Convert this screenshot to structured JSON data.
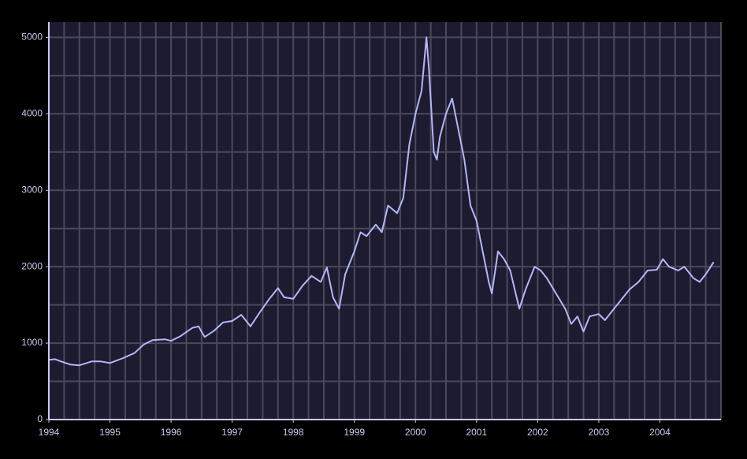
{
  "chart_data": {
    "type": "line",
    "x": [
      1994.0,
      1994.1,
      1994.2,
      1994.35,
      1994.5,
      1994.7,
      1994.85,
      1995.0,
      1995.2,
      1995.4,
      1995.55,
      1995.7,
      1995.9,
      1996.0,
      1996.15,
      1996.35,
      1996.45,
      1996.55,
      1996.7,
      1996.85,
      1997.0,
      1997.15,
      1997.3,
      1997.45,
      1997.6,
      1997.75,
      1997.85,
      1998.0,
      1998.15,
      1998.3,
      1998.45,
      1998.55,
      1998.65,
      1998.75,
      1998.85,
      1999.0,
      1999.1,
      1999.2,
      1999.35,
      1999.45,
      1999.55,
      1999.7,
      1999.8,
      1999.9,
      2000.0,
      2000.1,
      2000.18,
      2000.22,
      2000.3,
      2000.35,
      2000.4,
      2000.5,
      2000.6,
      2000.7,
      2000.8,
      2000.9,
      2001.0,
      2001.1,
      2001.2,
      2001.25,
      2001.35,
      2001.45,
      2001.55,
      2001.7,
      2001.8,
      2001.95,
      2002.05,
      2002.15,
      2002.3,
      2002.45,
      2002.55,
      2002.65,
      2002.75,
      2002.85,
      2003.0,
      2003.1,
      2003.2,
      2003.35,
      2003.5,
      2003.65,
      2003.8,
      2003.95,
      2004.05,
      2004.15,
      2004.3,
      2004.4,
      2004.55,
      2004.65,
      2004.75,
      2004.88
    ],
    "series": [
      {
        "color": "#b4b6f8",
        "values": [
          780,
          790,
          760,
          720,
          710,
          760,
          760,
          740,
          800,
          870,
          980,
          1040,
          1050,
          1030,
          1090,
          1200,
          1220,
          1080,
          1160,
          1270,
          1290,
          1370,
          1220,
          1400,
          1570,
          1720,
          1600,
          1580,
          1750,
          1880,
          1800,
          1990,
          1600,
          1450,
          1900,
          2200,
          2450,
          2400,
          2550,
          2450,
          2800,
          2700,
          2900,
          3600,
          4000,
          4300,
          5000,
          4600,
          3500,
          3400,
          3700,
          4000,
          4200,
          3800,
          3400,
          2800,
          2600,
          2200,
          1800,
          1650,
          2200,
          2100,
          1950,
          1450,
          1700,
          2000,
          1950,
          1850,
          1650,
          1450,
          1250,
          1350,
          1150,
          1350,
          1380,
          1300,
          1400,
          1550,
          1700,
          1800,
          1950,
          1960,
          2100,
          2000,
          1950,
          2000,
          1850,
          1800,
          1900,
          2060
        ]
      }
    ],
    "xlim": [
      1994,
      2005
    ],
    "xticks": [
      1994,
      1995,
      1996,
      1997,
      1998,
      1999,
      2000,
      2001,
      2002,
      2003,
      2004
    ],
    "minor_xticks": [
      1994.25,
      1994.5,
      1994.75,
      1995.25,
      1995.5,
      1995.75,
      1996.25,
      1996.5,
      1996.75,
      1997.25,
      1997.5,
      1997.75,
      1998.25,
      1998.5,
      1998.75,
      1999.25,
      1999.5,
      1999.75,
      2000.25,
      2000.5,
      2000.75,
      2001.25,
      2001.5,
      2001.75,
      2002.25,
      2002.5,
      2002.75,
      2003.25,
      2003.5,
      2003.75,
      2004.25,
      2004.5,
      2004.75,
      2005
    ],
    "ylim": [
      0,
      5200
    ],
    "yticks": [
      0,
      1000,
      2000,
      3000,
      4000,
      5000
    ],
    "minor_yticks": [
      500,
      1500,
      2500,
      3500,
      4500
    ],
    "grid": true
  }
}
